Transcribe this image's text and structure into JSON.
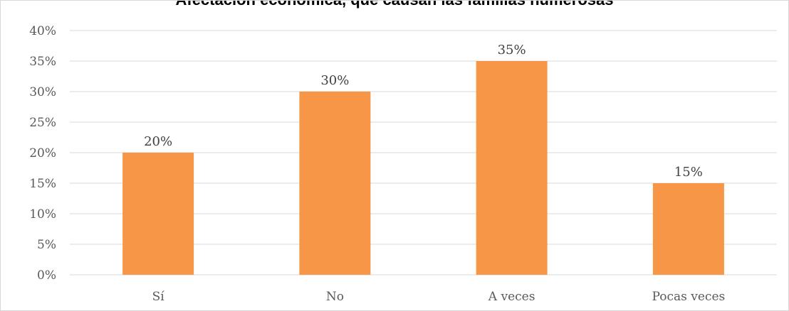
{
  "chart_data": {
    "type": "bar",
    "title": "Afectación económica, que causan las familias numerosas",
    "categories": [
      "Sí",
      "No",
      "A veces",
      "Pocas veces"
    ],
    "values": [
      20,
      30,
      35,
      15
    ],
    "data_labels": [
      "20%",
      "30%",
      "35%",
      "15%"
    ],
    "y_ticks": [
      "0%",
      "5%",
      "10%",
      "15%",
      "20%",
      "25%",
      "30%",
      "35%",
      "40%"
    ],
    "ylim": [
      0,
      40
    ],
    "grid": true,
    "bar_color": "#f79646",
    "gridline_color": "#d9d9d9",
    "legend": "none"
  }
}
